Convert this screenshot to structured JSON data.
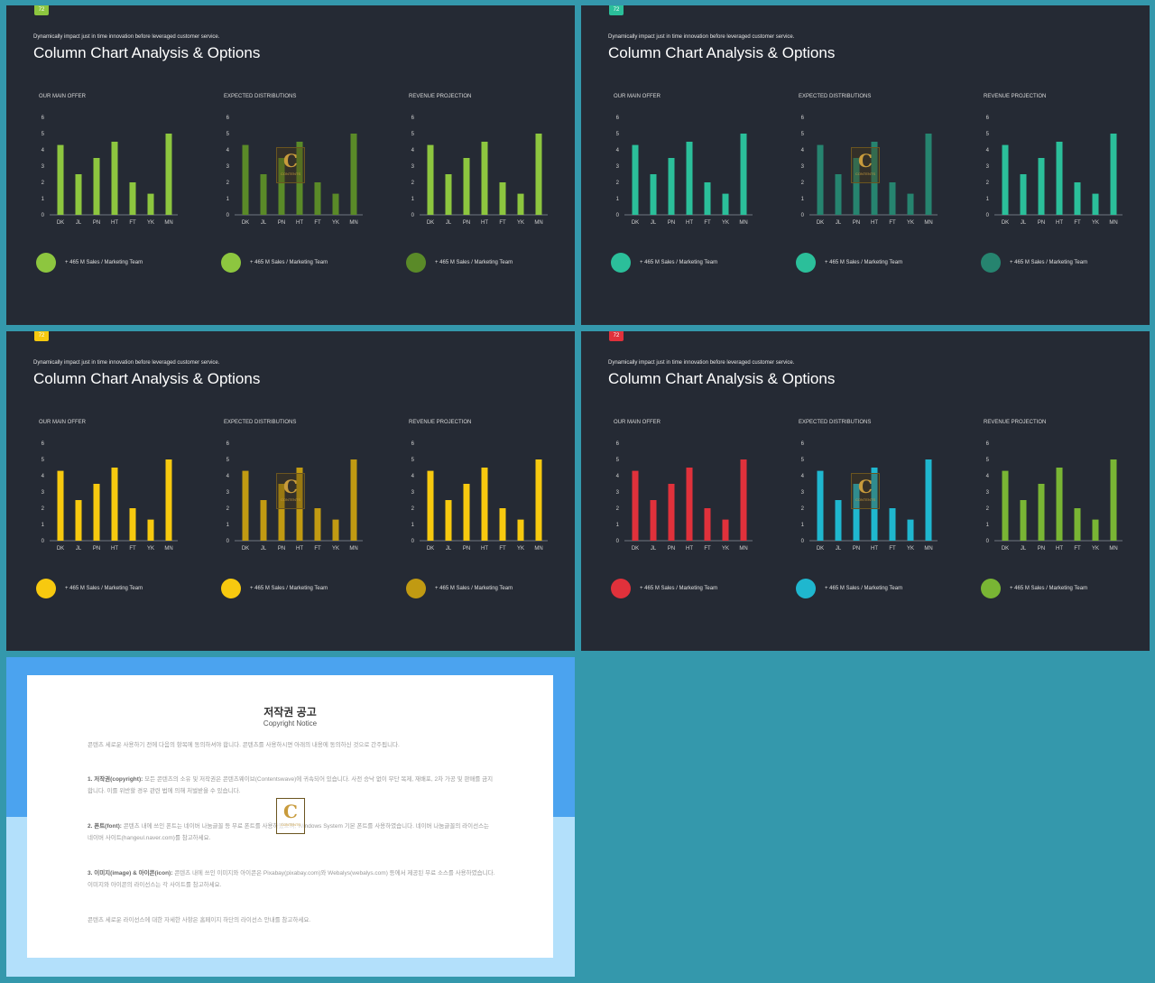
{
  "slides": [
    {
      "page": "72",
      "accent": "#8dc63f",
      "dark": "#5a8a28",
      "dots": [
        "#8dc63f",
        "#8dc63f",
        "#5a8a28"
      ]
    },
    {
      "page": "72",
      "accent": "#2bbf9a",
      "dark": "#26846f",
      "dots": [
        "#2bbf9a",
        "#2bbf9a",
        "#26846f"
      ]
    },
    {
      "page": "72",
      "accent": "#f7c90f",
      "dark": "#c19a12",
      "dots": [
        "#f7c90f",
        "#f7c90f",
        "#c19a12"
      ]
    },
    {
      "page": "72",
      "accent": "#e0313b",
      "dark": "#1fb7cf",
      "alt": "#79b534",
      "dots": [
        "#e0313b",
        "#1fb7cf",
        "#79b534"
      ]
    }
  ],
  "common": {
    "subtitle": "Dynamically impact just in time innovation  before leveraged customer service.",
    "title": "Column Chart Analysis & Options",
    "legend_text": "+ 465 M Sales / Marketing Team",
    "watermark_letter": "C",
    "watermark_name": "CONTENTS"
  },
  "chart_data": {
    "type": "bar",
    "titles": [
      "OUR MAIN OFFER",
      "EXPECTED DISTRIBUTIONS",
      "REVENUE PROJECTION"
    ],
    "categories": [
      "DK",
      "JL",
      "PN",
      "HT",
      "FT",
      "YK",
      "MN"
    ],
    "values": [
      4.3,
      2.5,
      3.5,
      4.5,
      2.0,
      1.3,
      5.0
    ],
    "ylim": [
      0,
      6
    ],
    "yticks": [
      "0",
      "1",
      "2",
      "3",
      "4",
      "5",
      "6"
    ]
  },
  "copyright": {
    "title": "저작권 공고",
    "subtitle": "Copyright Notice",
    "p0": "콘텐츠 세로운 사용하기 전에 다음의 항목에 동의하셔야 합니다. 콘텐츠를 사용하시면 아래의 내용에 동의하신 것으로 간주됩니다.",
    "p1_head": "1. 저작권(copyright):",
    "p1": " 모든 콘텐츠의 소유 및 저작권은 콘텐츠웨이브(Contentswave)에 귀속되어 있습니다. 사전 승낙 없이 무단 복제, 재배포, 2차 가공 및 판매를 금지합니다. 이를 위반할 경우 관련 법에 의해 처벌받을 수 있습니다.",
    "p2_head": "2. 폰트(font):",
    "p2": " 콘텐츠 내에 쓰인 폰트는 네이버 나눔글꼴 등 무료 폰트를 사용하였으며, Windows System 기본 폰트를 사용하였습니다. 네이버 나눔글꼴의 라이선스는 네이버 사이트(hangeul.naver.com)를 참고하세요.",
    "p3_head": "3. 이미지(image) & 아이콘(icon):",
    "p3": " 콘텐츠 내에 쓰인 이미지와 아이콘은 Pixabay(pixabay.com)와 Webalys(webalys.com) 등에서 제공된 무료 소스를 사용하였습니다. 이미지와 아이콘의 라이선스는 각 사이트를 참고하세요.",
    "p4": "콘텐츠 세로운 라이선스에 대한 자세한 사항은 홈페이지 하단의 라이선스 안내를 참고하세요."
  }
}
